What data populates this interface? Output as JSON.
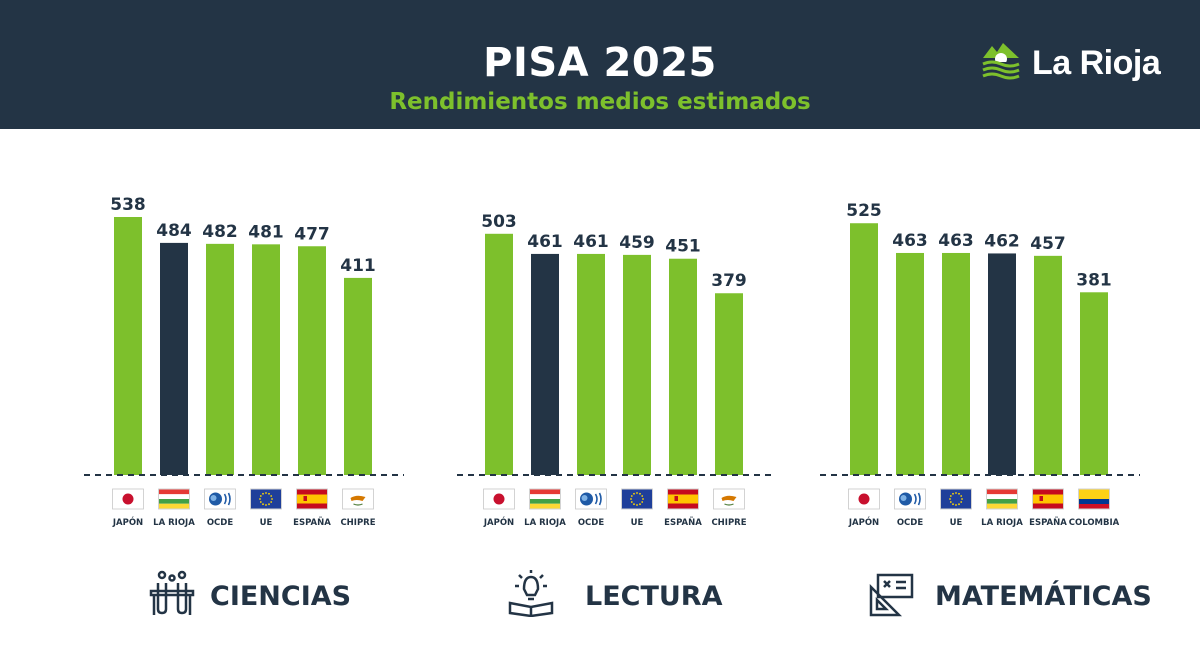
{
  "header": {
    "title": "PISA 2025",
    "subtitle": "Rendimientos medios estimados",
    "brand": "La Rioja"
  },
  "colors": {
    "header_bg": "#233445",
    "green": "#7dc02c",
    "dark": "#233445"
  },
  "chart_data": [
    {
      "type": "bar",
      "subject": "CIENCIAS",
      "icon": "flask-icon",
      "categories": [
        "JAPÓN",
        "LA RIOJA",
        "OCDE",
        "UE",
        "ESPAÑA",
        "CHIPRE"
      ],
      "flags": [
        "japan-flag-icon",
        "la-rioja-flag-icon",
        "ocde-logo-icon",
        "eu-flag-icon",
        "spain-flag-icon",
        "cyprus-flag-icon"
      ],
      "values": [
        538,
        484,
        482,
        481,
        477,
        411
      ],
      "highlight": "LA RIOJA"
    },
    {
      "type": "bar",
      "subject": "LECTURA",
      "icon": "book-lightbulb-icon",
      "categories": [
        "JAPÓN",
        "LA RIOJA",
        "OCDE",
        "UE",
        "ESPAÑA",
        "CHIPRE"
      ],
      "flags": [
        "japan-flag-icon",
        "la-rioja-flag-icon",
        "ocde-logo-icon",
        "eu-flag-icon",
        "spain-flag-icon",
        "cyprus-flag-icon"
      ],
      "values": [
        503,
        461,
        461,
        459,
        451,
        379
      ],
      "highlight": "LA RIOJA"
    },
    {
      "type": "bar",
      "subject": "MATEMÁTICAS",
      "icon": "math-board-icon",
      "categories": [
        "JAPÓN",
        "OCDE",
        "UE",
        "LA RIOJA",
        "ESPAÑA",
        "COLOMBIA"
      ],
      "flags": [
        "japan-flag-icon",
        "ocde-logo-icon",
        "eu-flag-icon",
        "la-rioja-flag-icon",
        "spain-flag-icon",
        "colombia-flag-icon"
      ],
      "values": [
        525,
        463,
        463,
        462,
        457,
        381
      ],
      "highlight": "LA RIOJA"
    }
  ]
}
